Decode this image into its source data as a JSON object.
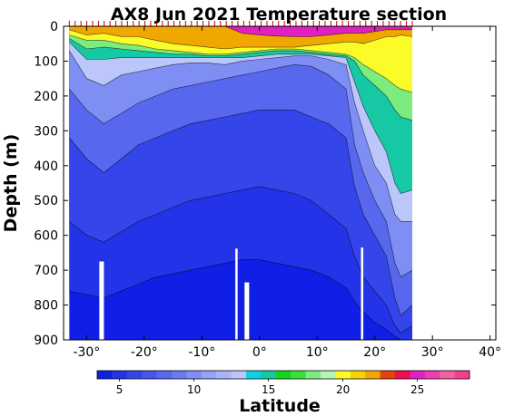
{
  "chart_data": {
    "type": "heatmap",
    "title": "AX8 Jun 2021 Temperature section",
    "xlabel": "Latitude",
    "ylabel": "Depth (m)",
    "xlim": [
      -34,
      41
    ],
    "ylim": [
      900,
      0
    ],
    "y_inverted": true,
    "x_ticks": [
      -30,
      -20,
      -10,
      0,
      10,
      20,
      30,
      40
    ],
    "x_tick_labels": [
      "-30°",
      "-20°",
      "-10°",
      "0°",
      "10°",
      "20°",
      "30°",
      "40°"
    ],
    "y_ticks": [
      0,
      100,
      200,
      300,
      400,
      500,
      600,
      700,
      800,
      900
    ],
    "y_tick_labels": [
      "0",
      "100",
      "200",
      "300",
      "400",
      "500",
      "600",
      "700",
      "800",
      "900"
    ],
    "data_extent_lat": [
      -33,
      26.5
    ],
    "station_marks_count": 60,
    "colorbar": {
      "orientation": "horizontal",
      "placement": "bottom",
      "range": [
        3.5,
        28.5
      ],
      "ticks": [
        5,
        10,
        15,
        20,
        25
      ],
      "tick_labels": [
        "5",
        "10",
        "15",
        "20",
        "25"
      ],
      "levels": [
        3.5,
        4.5,
        5.5,
        6.5,
        7.5,
        8.5,
        9.5,
        10.5,
        11.5,
        12.5,
        13.5,
        14.5,
        15.5,
        16.5,
        17.5,
        18.5,
        19.5,
        20.5,
        21.5,
        22.5,
        23.5,
        24.5,
        25.5,
        26.5,
        27.5,
        28.5
      ],
      "colors": [
        "#0f1fe6",
        "#2233e8",
        "#3445ea",
        "#4656ec",
        "#5868ee",
        "#6a7af0",
        "#7f8ef3",
        "#96a3f6",
        "#a9b5f8",
        "#bcc6fa",
        "#12cfe8",
        "#16c8a4",
        "#12d81a",
        "#38e03e",
        "#7cec7e",
        "#b2f5b2",
        "#fbfb2a",
        "#f5d400",
        "#f0a800",
        "#e84008",
        "#f00e50",
        "#e020c0",
        "#ec40b2",
        "#f2609e",
        "#f5408f"
      ]
    },
    "isotherms_depth_m": {
      "lat": [
        -33,
        -30,
        -27,
        -24,
        -21,
        -18,
        -15,
        -12,
        -9,
        -6,
        -3,
        0,
        3,
        6,
        9,
        12,
        15,
        16.5,
        18,
        20,
        22,
        23.5,
        24.5,
        26.5
      ],
      "series": [
        {
          "t": 25,
          "values": [
            0,
            0,
            0,
            0,
            0,
            0,
            0,
            0,
            0,
            0,
            20,
            25,
            28,
            30,
            30,
            25,
            20,
            20,
            20,
            15,
            10,
            10,
            10,
            10
          ]
        },
        {
          "t": 22,
          "values": [
            10,
            25,
            20,
            30,
            30,
            40,
            50,
            55,
            60,
            65,
            60,
            60,
            60,
            60,
            55,
            50,
            45,
            45,
            50,
            40,
            30,
            30,
            25,
            30
          ]
        },
        {
          "t": 20,
          "values": [
            25,
            40,
            40,
            50,
            55,
            65,
            70,
            75,
            80,
            80,
            75,
            70,
            65,
            65,
            70,
            75,
            80,
            90,
            110,
            130,
            150,
            170,
            180,
            190
          ]
        },
        {
          "t": 18,
          "values": [
            35,
            65,
            60,
            65,
            70,
            75,
            80,
            80,
            85,
            85,
            80,
            75,
            70,
            70,
            75,
            80,
            85,
            100,
            140,
            170,
            200,
            240,
            260,
            270
          ]
        },
        {
          "t": 15,
          "values": [
            45,
            95,
            95,
            90,
            90,
            90,
            90,
            90,
            90,
            90,
            90,
            85,
            80,
            80,
            80,
            85,
            90,
            160,
            230,
            300,
            360,
            450,
            480,
            470
          ]
        },
        {
          "t": 13,
          "values": [
            70,
            150,
            170,
            140,
            130,
            120,
            110,
            105,
            105,
            110,
            100,
            95,
            90,
            85,
            85,
            95,
            110,
            220,
            300,
            400,
            450,
            540,
            560,
            560
          ]
        },
        {
          "t": 10,
          "values": [
            180,
            240,
            280,
            250,
            220,
            200,
            180,
            170,
            160,
            150,
            140,
            130,
            120,
            110,
            115,
            140,
            180,
            340,
            420,
            500,
            560,
            680,
            720,
            700
          ]
        },
        {
          "t": 8,
          "values": [
            320,
            380,
            420,
            380,
            340,
            320,
            300,
            280,
            270,
            260,
            250,
            240,
            240,
            240,
            260,
            280,
            320,
            460,
            540,
            600,
            660,
            780,
            830,
            800
          ]
        },
        {
          "t": 6,
          "values": [
            560,
            600,
            620,
            590,
            560,
            540,
            520,
            500,
            490,
            480,
            470,
            460,
            470,
            480,
            500,
            540,
            580,
            660,
            720,
            760,
            800,
            860,
            880,
            860
          ]
        },
        {
          "t": 5,
          "values": [
            760,
            770,
            780,
            760,
            740,
            720,
            710,
            700,
            690,
            680,
            670,
            670,
            680,
            690,
            700,
            720,
            750,
            790,
            820,
            850,
            870,
            890,
            900,
            900
          ]
        }
      ]
    }
  }
}
